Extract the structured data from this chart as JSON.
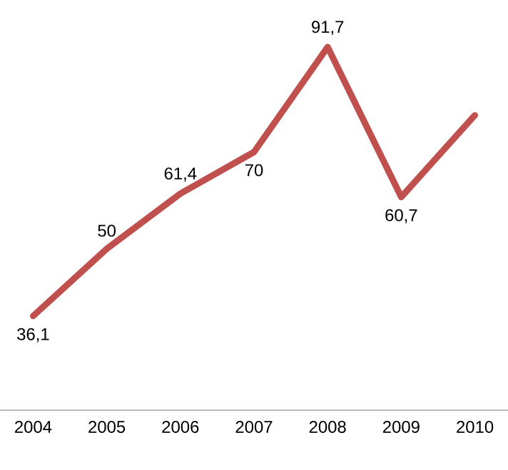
{
  "chart_data": {
    "type": "line",
    "categories": [
      "2004",
      "2005",
      "2006",
      "2007",
      "2008",
      "2009",
      "2010"
    ],
    "values": [
      36.1,
      50,
      61.4,
      70,
      91.7,
      60.7,
      77.6
    ],
    "value_labels": [
      "36,1",
      "50",
      "61,4",
      "70",
      "91,7",
      "60,7",
      null
    ],
    "color": "#c0504d",
    "tick_labels": "x",
    "marker": "none",
    "line_style": "solid"
  }
}
